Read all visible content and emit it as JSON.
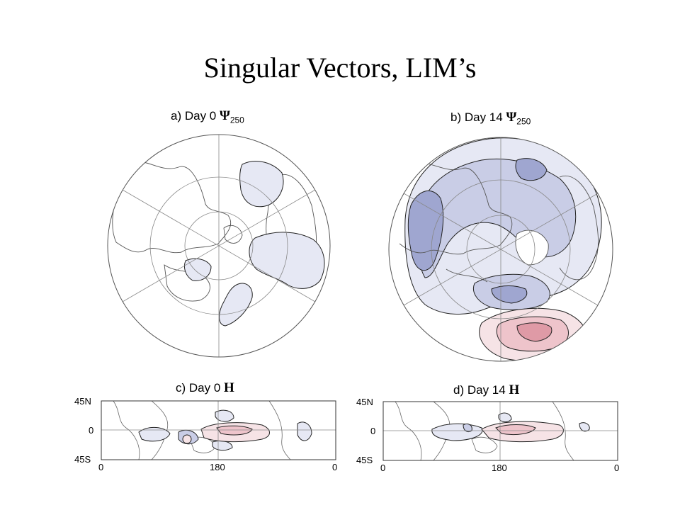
{
  "slide": {
    "title": "Singular Vectors, LIM’s"
  },
  "panels": {
    "a": {
      "prefix": "a) Day 0 ",
      "symbol": "Ψ",
      "sub": "250"
    },
    "b": {
      "prefix": "b) Day 14 ",
      "symbol": "Ψ",
      "sub": "250"
    },
    "c": {
      "prefix": "c) Day 0 ",
      "symbol": "H"
    },
    "d": {
      "prefix": "d) Day 14 ",
      "symbol": "H"
    }
  },
  "map_axes": {
    "lat_labels": [
      "45N",
      "0",
      "45S"
    ],
    "lon_labels": [
      "0",
      "180",
      "0"
    ]
  },
  "colors": {
    "negative_fill_light": "#e6e8f4",
    "negative_fill_mid": "#c9cde6",
    "negative_fill_dark": "#9fa6d0",
    "positive_fill_light": "#f6e3e6",
    "positive_fill_mid": "#eec4cb",
    "positive_fill_dark": "#df9aa6",
    "contour": "#222222"
  }
}
